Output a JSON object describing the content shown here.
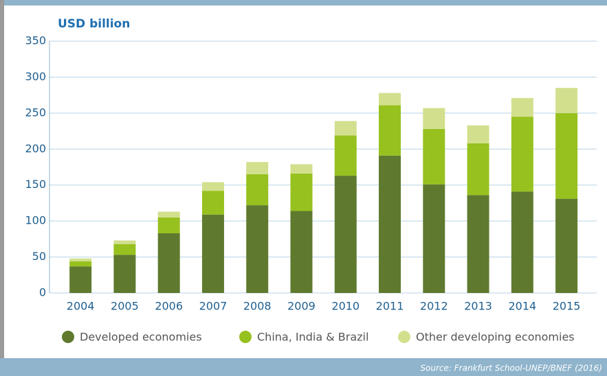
{
  "chart_data": {
    "type": "stacked_bar",
    "title": "USD billion",
    "source": "Source: Frankfurt School-UNEP/BNEF (2016)",
    "categories": [
      "2004",
      "2005",
      "2006",
      "2007",
      "2008",
      "2009",
      "2010",
      "2011",
      "2012",
      "2013",
      "2014",
      "2015"
    ],
    "series": [
      {
        "name": "Developed economies",
        "color": "#5f7a2e",
        "values": [
          37,
          53,
          83,
          109,
          122,
          114,
          163,
          191,
          151,
          136,
          141,
          131
        ]
      },
      {
        "name": "China, India & Brazil",
        "color": "#97c11f",
        "values": [
          7,
          15,
          22,
          33,
          43,
          52,
          56,
          70,
          77,
          72,
          104,
          119
        ]
      },
      {
        "name": "Other developing economies",
        "color": "#d2e08e",
        "values": [
          4,
          5,
          8,
          12,
          17,
          13,
          20,
          17,
          29,
          25,
          26,
          35
        ]
      }
    ],
    "ylim": [
      0,
      350
    ],
    "yticks": [
      0,
      50,
      100,
      150,
      200,
      250,
      300,
      350
    ],
    "grid": true
  }
}
